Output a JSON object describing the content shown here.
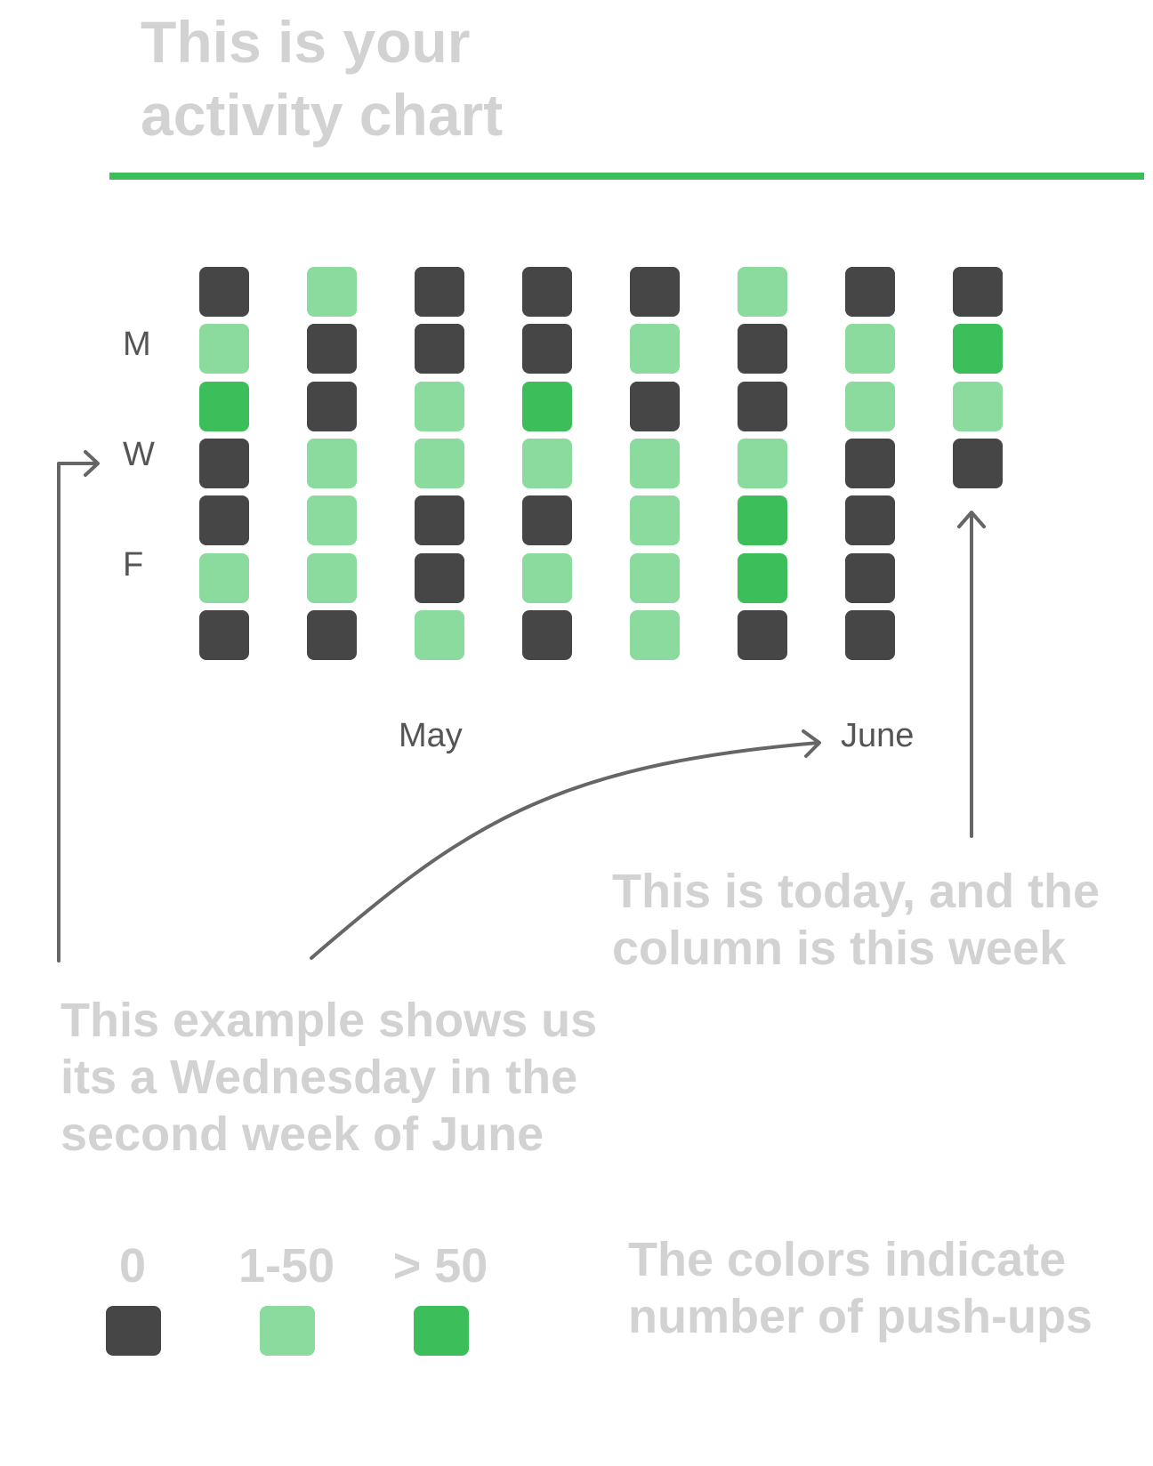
{
  "title": {
    "line1": "This is your",
    "line2": "activity chart"
  },
  "colors": {
    "none": "#464646",
    "low": "#8cdb9e",
    "high": "#3cbf5a",
    "rule": "#3cbf5a",
    "arrow": "#666666"
  },
  "chart_data": {
    "type": "heatmap",
    "title": "This is your activity chart",
    "row_labels": [
      "",
      "M",
      "",
      "W",
      "",
      "F",
      ""
    ],
    "column_count": 8,
    "month_labels": [
      "May",
      "June"
    ],
    "levels": [
      "0",
      "1-50",
      "> 50"
    ],
    "columns": [
      [
        "0",
        "1-50",
        "> 50",
        "0",
        "0",
        "1-50",
        "0"
      ],
      [
        "1-50",
        "0",
        "0",
        "1-50",
        "1-50",
        "1-50",
        "0"
      ],
      [
        "0",
        "0",
        "1-50",
        "1-50",
        "0",
        "0",
        "1-50"
      ],
      [
        "0",
        "0",
        "> 50",
        "1-50",
        "0",
        "1-50",
        "0"
      ],
      [
        "0",
        "1-50",
        "0",
        "1-50",
        "1-50",
        "1-50",
        "1-50"
      ],
      [
        "1-50",
        "0",
        "0",
        "1-50",
        "> 50",
        "> 50",
        "0"
      ],
      [
        "0",
        "1-50",
        "1-50",
        "0",
        "0",
        "0",
        "0"
      ],
      [
        "0",
        "> 50",
        "1-50",
        "0"
      ]
    ]
  },
  "notes": {
    "today": {
      "line1": "This is today, and the",
      "line2": "column is this week"
    },
    "example": {
      "line1": "This example shows us",
      "line2": "its a Wednesday in the",
      "line3": "second week of June"
    },
    "colors": {
      "line1": "The colors indicate",
      "line2": "number of push-ups"
    }
  },
  "legend": [
    {
      "label": "0",
      "level": "none"
    },
    {
      "label": "1-50",
      "level": "low"
    },
    {
      "label": "> 50",
      "level": "high"
    }
  ]
}
